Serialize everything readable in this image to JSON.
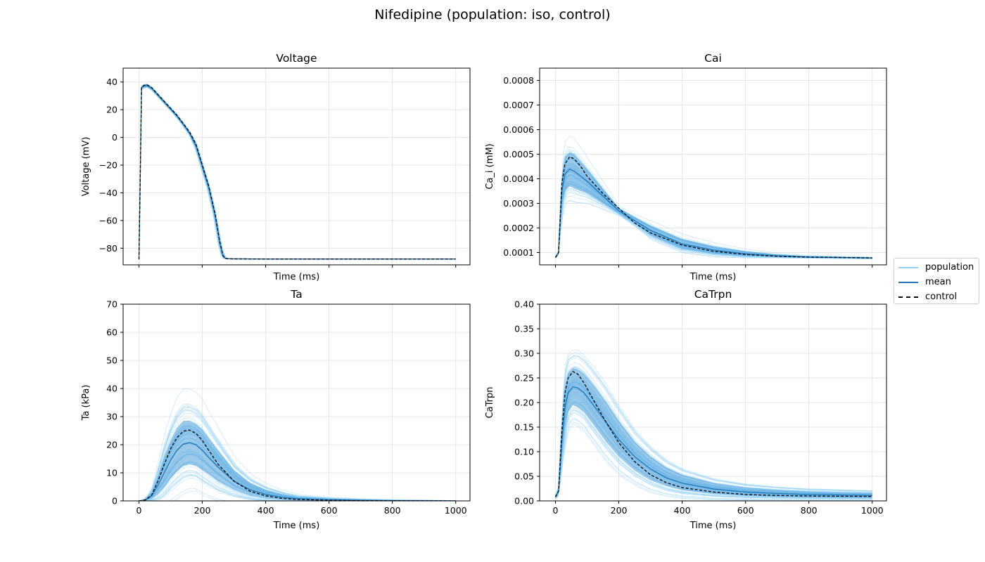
{
  "figure": {
    "title": "Nifedipine (population: iso, control)"
  },
  "legend": {
    "items": [
      {
        "label": "population",
        "color": "#8ecff7"
      },
      {
        "label": "mean",
        "color": "#1f77b4"
      },
      {
        "label": "control",
        "color": "#000000",
        "style": "dashed"
      }
    ]
  },
  "colors": {
    "population": "#8ecff7",
    "band": "#4a9fd8",
    "mean": "#1f77b4",
    "control": "#000000",
    "grid": "#e6e6e6"
  },
  "chart_data": [
    {
      "type": "line",
      "title": "Voltage",
      "xlabel": "Time (ms)",
      "ylabel": "Voltage (mV)",
      "xlim": [
        -50,
        1045
      ],
      "ylim": [
        -92,
        50
      ],
      "xticks": [
        0,
        200,
        400,
        600,
        800,
        1000
      ],
      "show_xticklabels": false,
      "yticks": [
        -80,
        -60,
        -40,
        -20,
        0,
        20,
        40
      ],
      "yticklabels": [
        "−80",
        "−60",
        "−40",
        "−20",
        "0",
        "20",
        "40"
      ],
      "grid": true,
      "series": [
        {
          "name": "control",
          "x": [
            0,
            4,
            8,
            15,
            25,
            40,
            60,
            80,
            100,
            120,
            140,
            160,
            180,
            200,
            220,
            240,
            255,
            265,
            272,
            280,
            300,
            400,
            600,
            800,
            1000
          ],
          "y": [
            -88,
            -30,
            36,
            37.5,
            38,
            36,
            31,
            26,
            21,
            16,
            10,
            4,
            -5,
            -20,
            -35,
            -55,
            -75,
            -85,
            -87.3,
            -87.6,
            -87.7,
            -87.8,
            -87.8,
            -87.8,
            -87.8
          ]
        }
      ],
      "mean": {
        "x": [
          0,
          4,
          8,
          15,
          25,
          40,
          60,
          80,
          100,
          120,
          140,
          160,
          180,
          200,
          220,
          240,
          255,
          265,
          272,
          280,
          300,
          400,
          600,
          800,
          1000
        ],
        "y": [
          -88,
          -30,
          36,
          37,
          37.5,
          35.5,
          30.5,
          25.5,
          20.5,
          15.5,
          9.5,
          3,
          -6,
          -21,
          -36,
          -56,
          -76,
          -85.5,
          -87.3,
          -87.6,
          -87.7,
          -87.8,
          -87.8,
          -87.8,
          -87.8
        ]
      },
      "band": {
        "x": [
          0,
          4,
          8,
          15,
          25,
          40,
          60,
          80,
          100,
          120,
          140,
          160,
          180,
          200,
          220,
          240,
          255,
          265,
          272,
          280,
          300,
          400,
          600,
          800,
          1000
        ],
        "lower": [
          -88.5,
          -32,
          35,
          36,
          36.5,
          34.5,
          29.5,
          24.5,
          19.5,
          14.5,
          8.5,
          2,
          -8,
          -23,
          -38,
          -58,
          -78,
          -86.5,
          -87.6,
          -87.8,
          -87.9,
          -88,
          -88,
          -88,
          -88
        ],
        "upper": [
          -87.5,
          -28,
          37,
          38,
          38.5,
          36.5,
          31.5,
          26.5,
          21.5,
          16.5,
          10.5,
          4,
          -4,
          -19,
          -34,
          -54,
          -74,
          -84.5,
          -87,
          -87.4,
          -87.5,
          -87.6,
          -87.6,
          -87.6,
          -87.6
        ]
      },
      "population_spread": 1.2
    },
    {
      "type": "line",
      "title": "Cai",
      "xlabel": "Time (ms)",
      "ylabel": "Ca_i (mM)",
      "xlim": [
        -50,
        1045
      ],
      "ylim": [
        5e-05,
        0.00085
      ],
      "xticks": [
        0,
        200,
        400,
        600,
        800,
        1000
      ],
      "show_xticklabels": false,
      "yticks": [
        0.0001,
        0.0002,
        0.0003,
        0.0004,
        0.0005,
        0.0006,
        0.0007,
        0.0008
      ],
      "yticklabels": [
        "0.0001",
        "0.0002",
        "0.0003",
        "0.0004",
        "0.0005",
        "0.0006",
        "0.0007",
        "0.0008"
      ],
      "grid": true,
      "series": [
        {
          "name": "control",
          "x": [
            0,
            10,
            20,
            30,
            45,
            60,
            80,
            100,
            150,
            200,
            250,
            300,
            400,
            500,
            600,
            700,
            800,
            900,
            1000
          ],
          "y": [
            8e-05,
            0.0001,
            0.00038,
            0.00046,
            0.00049,
            0.00048,
            0.00045,
            0.00041,
            0.00034,
            0.00028,
            0.00022,
            0.00018,
            0.00013,
            0.000105,
            9.2e-05,
            8.5e-05,
            8.1e-05,
            8e-05,
            7.8e-05
          ]
        }
      ],
      "mean": {
        "x": [
          0,
          10,
          20,
          30,
          45,
          60,
          80,
          100,
          150,
          200,
          250,
          300,
          400,
          500,
          600,
          700,
          800,
          900,
          1000
        ],
        "y": [
          8e-05,
          0.0001,
          0.00035,
          0.00042,
          0.00044,
          0.00043,
          0.00041,
          0.00039,
          0.00033,
          0.00027,
          0.00023,
          0.00019,
          0.000135,
          0.00011,
          9.5e-05,
          8.7e-05,
          8.2e-05,
          8e-05,
          7.8e-05
        ]
      },
      "band": {
        "x": [
          0,
          10,
          20,
          30,
          45,
          60,
          80,
          100,
          150,
          200,
          250,
          300,
          400,
          500,
          600,
          700,
          800,
          900,
          1000
        ],
        "lower": [
          7.8e-05,
          9.5e-05,
          0.00029,
          0.00035,
          0.00037,
          0.00036,
          0.00035,
          0.00034,
          0.0003,
          0.00026,
          0.00022,
          0.00017,
          0.000115,
          9.5e-05,
          8.6e-05,
          8.2e-05,
          7.9e-05,
          7.7e-05,
          7.6e-05
        ],
        "upper": [
          8.2e-05,
          0.000105,
          0.00041,
          0.00049,
          0.00051,
          0.0005,
          0.00047,
          0.00044,
          0.00036,
          0.00028,
          0.000245,
          0.00021,
          0.000155,
          0.000125,
          0.000105,
          9.2e-05,
          8.5e-05,
          8.2e-05,
          8e-05
        ]
      },
      "population_spread": 1.6
    },
    {
      "type": "line",
      "title": "Ta",
      "xlabel": "Time (ms)",
      "ylabel": "Ta (kPa)",
      "xlim": [
        -50,
        1045
      ],
      "ylim": [
        0,
        70
      ],
      "xticks": [
        0,
        200,
        400,
        600,
        800,
        1000
      ],
      "xticklabels": [
        "0",
        "200",
        "400",
        "600",
        "800",
        "1000"
      ],
      "show_xticklabels": true,
      "yticks": [
        0,
        10,
        20,
        30,
        40,
        50,
        60,
        70
      ],
      "yticklabels": [
        "0",
        "10",
        "20",
        "30",
        "40",
        "50",
        "60",
        "70"
      ],
      "grid": true,
      "series": [
        {
          "name": "control",
          "x": [
            0,
            20,
            40,
            60,
            80,
            100,
            120,
            140,
            160,
            180,
            200,
            220,
            250,
            300,
            350,
            400,
            450,
            500,
            600,
            700,
            800,
            900,
            1000
          ],
          "y": [
            0,
            0.3,
            2,
            7,
            13,
            18.5,
            22.5,
            24.8,
            25.2,
            24,
            21.5,
            18,
            13,
            7,
            3.5,
            1.8,
            0.9,
            0.5,
            0.2,
            0.1,
            0.05,
            0.02,
            0
          ]
        }
      ],
      "mean": {
        "x": [
          0,
          20,
          40,
          60,
          80,
          100,
          120,
          140,
          160,
          180,
          200,
          220,
          250,
          300,
          350,
          400,
          450,
          500,
          600,
          700,
          800,
          900,
          1000
        ],
        "y": [
          0,
          0.3,
          1.8,
          5.5,
          10,
          14.5,
          18,
          20.2,
          20.7,
          20,
          18,
          15.5,
          12,
          7,
          4,
          2.3,
          1.3,
          0.8,
          0.4,
          0.2,
          0.1,
          0.05,
          0
        ]
      },
      "band": {
        "x": [
          0,
          20,
          40,
          60,
          80,
          100,
          120,
          140,
          160,
          180,
          200,
          220,
          250,
          300,
          350,
          400,
          450,
          500,
          600,
          700,
          800,
          900,
          1000
        ],
        "lower": [
          0,
          0.1,
          0.8,
          2.5,
          5,
          8,
          10.5,
          12.5,
          13,
          12.5,
          11,
          9.5,
          7,
          4,
          2,
          1,
          0.5,
          0.3,
          0.1,
          0.05,
          0.02,
          0,
          0
        ],
        "upper": [
          0,
          0.6,
          3,
          9,
          16,
          21.5,
          26,
          28.5,
          28.5,
          27.5,
          25.5,
          22.5,
          18,
          11,
          6.5,
          4,
          2.5,
          1.5,
          0.8,
          0.5,
          0.3,
          0.2,
          0.1
        ]
      },
      "population_spread": 2.3
    },
    {
      "type": "line",
      "title": "CaTrpn",
      "xlabel": "Time (ms)",
      "ylabel": "CaTrpn",
      "xlim": [
        -50,
        1045
      ],
      "ylim": [
        0,
        0.4
      ],
      "xticks": [
        0,
        200,
        400,
        600,
        800,
        1000
      ],
      "xticklabels": [
        "0",
        "200",
        "400",
        "600",
        "800",
        "1000"
      ],
      "show_xticklabels": true,
      "yticks": [
        0,
        0.05,
        0.1,
        0.15,
        0.2,
        0.25,
        0.3,
        0.35,
        0.4
      ],
      "yticklabels": [
        "0.00",
        "0.05",
        "0.10",
        "0.15",
        "0.20",
        "0.25",
        "0.30",
        "0.35",
        "0.40"
      ],
      "grid": true,
      "series": [
        {
          "name": "control",
          "x": [
            0,
            10,
            20,
            30,
            40,
            55,
            70,
            90,
            120,
            160,
            200,
            250,
            300,
            350,
            400,
            500,
            600,
            700,
            800,
            900,
            1000
          ],
          "y": [
            0.008,
            0.02,
            0.14,
            0.22,
            0.25,
            0.263,
            0.258,
            0.24,
            0.205,
            0.16,
            0.118,
            0.08,
            0.053,
            0.037,
            0.027,
            0.018,
            0.013,
            0.011,
            0.01,
            0.0095,
            0.009
          ]
        }
      ],
      "mean": {
        "x": [
          0,
          10,
          20,
          30,
          40,
          55,
          70,
          90,
          120,
          160,
          200,
          250,
          300,
          350,
          400,
          500,
          600,
          700,
          800,
          900,
          1000
        ],
        "y": [
          0.008,
          0.02,
          0.12,
          0.19,
          0.22,
          0.232,
          0.23,
          0.22,
          0.195,
          0.16,
          0.125,
          0.09,
          0.065,
          0.047,
          0.036,
          0.024,
          0.018,
          0.015,
          0.013,
          0.012,
          0.011
        ]
      },
      "band": {
        "x": [
          0,
          10,
          20,
          30,
          40,
          55,
          70,
          90,
          120,
          160,
          200,
          250,
          300,
          350,
          400,
          500,
          600,
          700,
          800,
          900,
          1000
        ],
        "lower": [
          0.006,
          0.015,
          0.09,
          0.15,
          0.18,
          0.195,
          0.19,
          0.18,
          0.155,
          0.12,
          0.09,
          0.062,
          0.042,
          0.03,
          0.022,
          0.014,
          0.01,
          0.008,
          0.007,
          0.006,
          0.006
        ],
        "upper": [
          0.01,
          0.025,
          0.15,
          0.23,
          0.26,
          0.27,
          0.268,
          0.258,
          0.235,
          0.2,
          0.162,
          0.12,
          0.09,
          0.068,
          0.053,
          0.036,
          0.027,
          0.022,
          0.019,
          0.017,
          0.016
        ]
      },
      "population_spread": 1.9
    }
  ]
}
